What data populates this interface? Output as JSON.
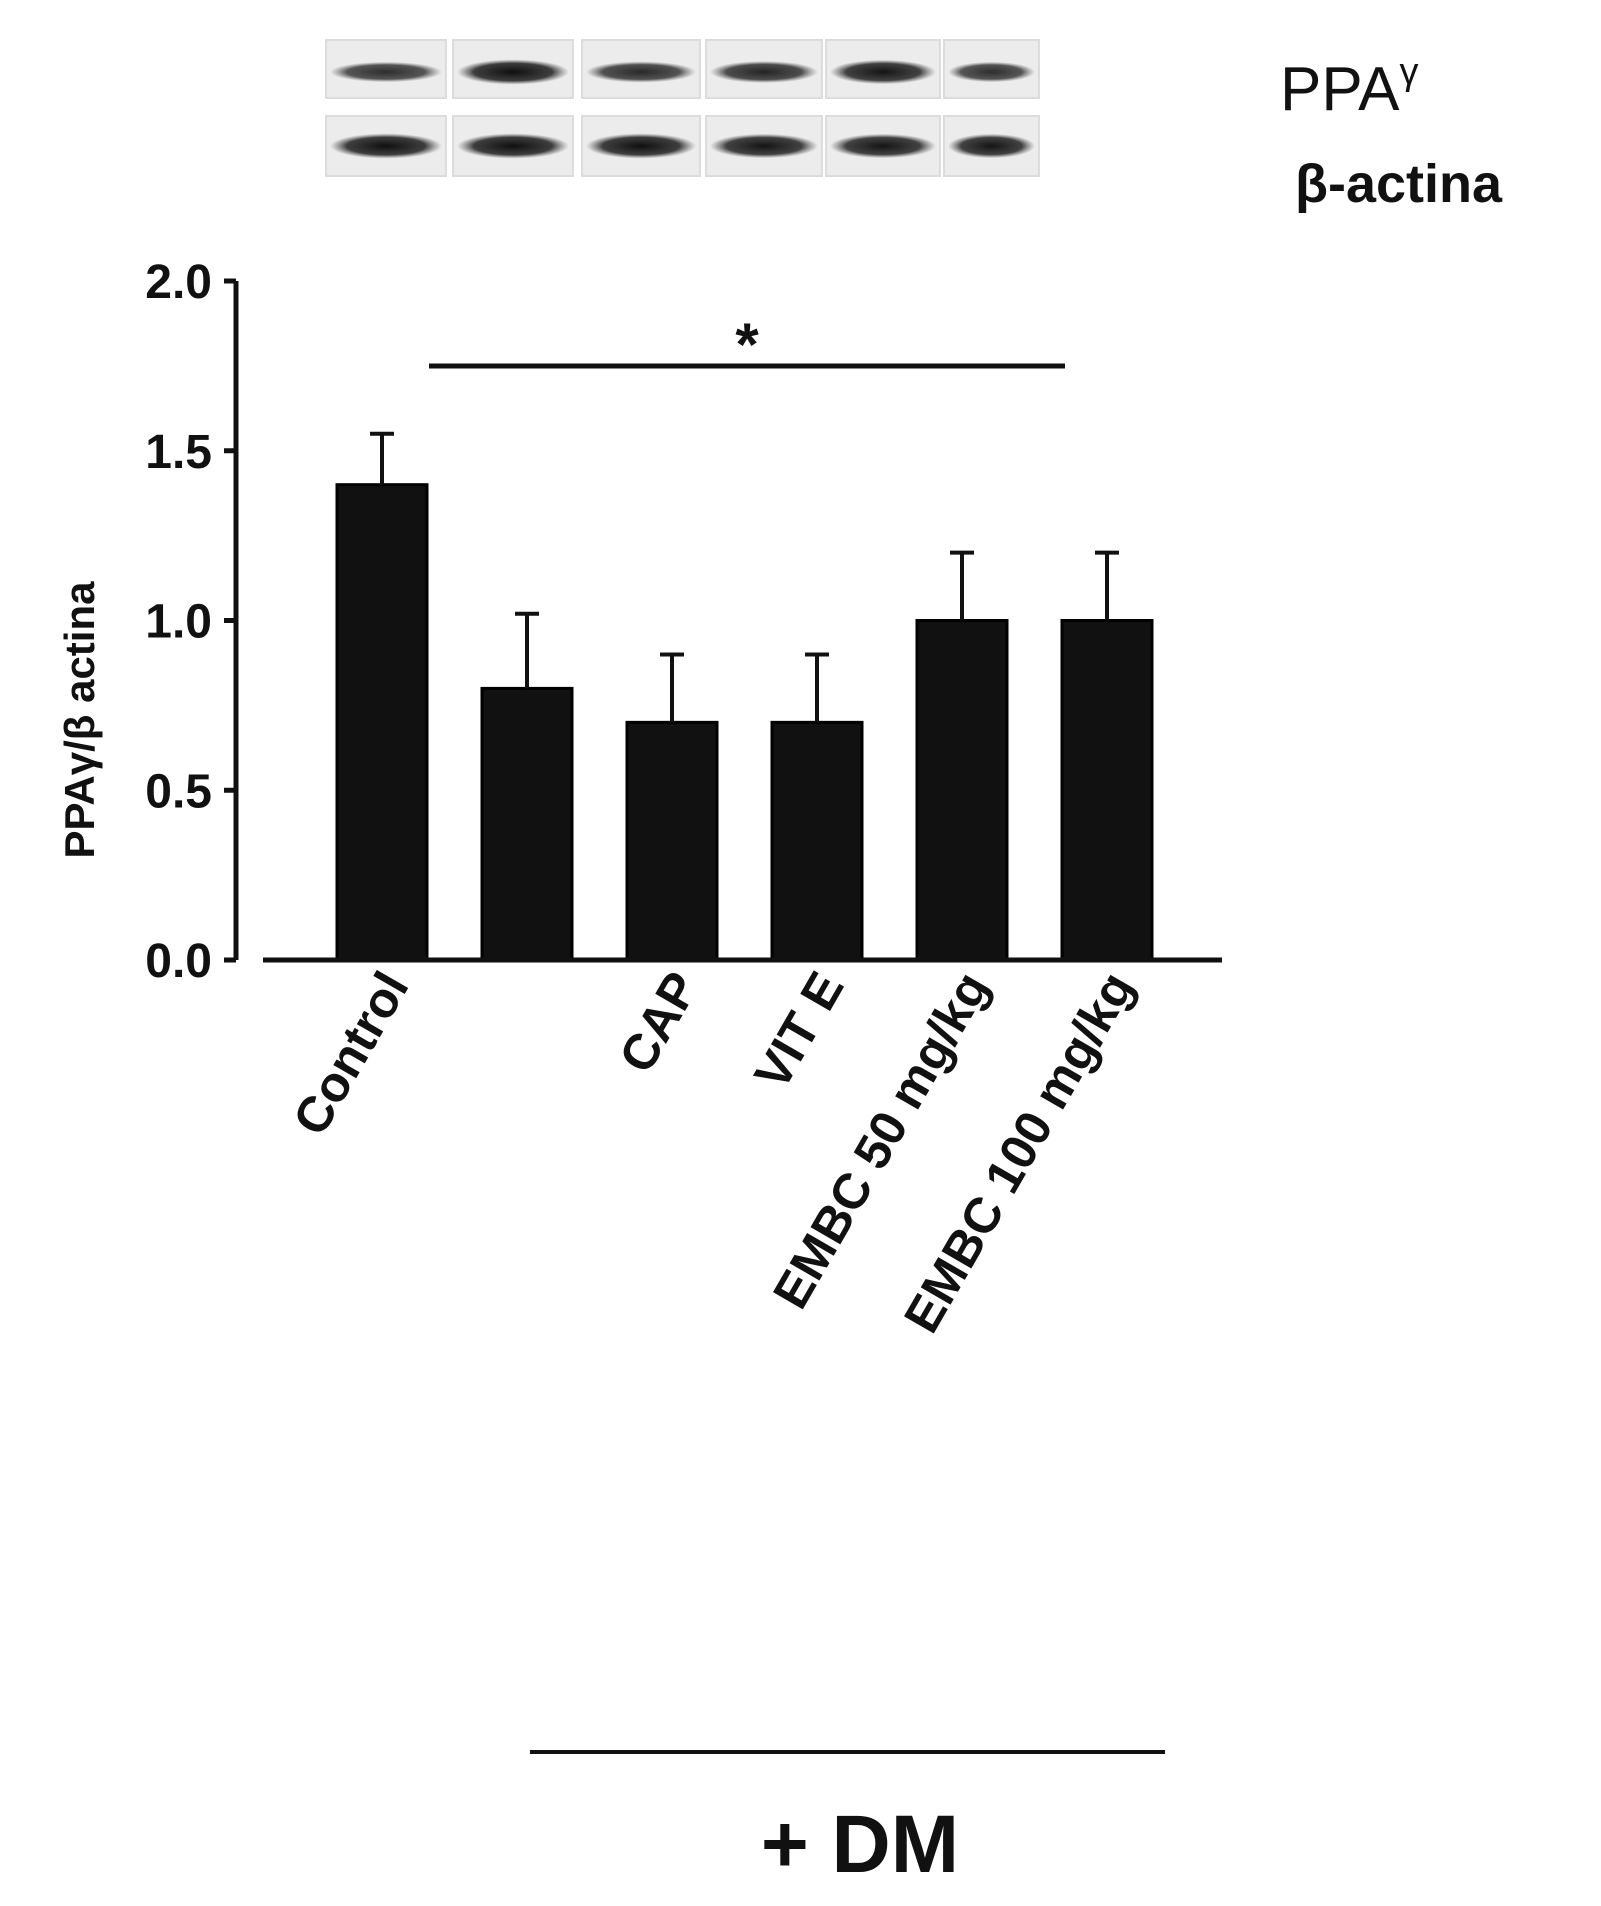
{
  "blot": {
    "rows": [
      {
        "label": "PPA",
        "label_sup": "γ",
        "intensities": [
          0.65,
          0.95,
          0.7,
          0.75,
          0.9,
          0.65
        ]
      },
      {
        "label": "β-actina",
        "label_sup": "",
        "intensities": [
          0.95,
          0.95,
          0.95,
          0.9,
          0.9,
          0.9
        ]
      }
    ]
  },
  "chart_data": {
    "type": "bar",
    "categories": [
      "Control",
      "",
      "CAP",
      "VIT E",
      "EMBC 50 mg/kg",
      "EMBC 100 mg/kg"
    ],
    "values": [
      1.4,
      0.8,
      0.7,
      0.7,
      1.0,
      1.0
    ],
    "errors": [
      0.15,
      0.22,
      0.2,
      0.2,
      0.2,
      0.2
    ],
    "ylabel": "PPAγ/β actina",
    "ylim": [
      0,
      2.0
    ],
    "yticks": [
      "0.0",
      "0.5",
      "1.0",
      "1.5",
      "2.0"
    ],
    "ytick_values": [
      0,
      0.5,
      1.0,
      1.5,
      2.0
    ],
    "bar_color": "#111111",
    "significance": {
      "symbol": "*",
      "from_category": 0,
      "to_category": 5
    },
    "group_label": "+ DM",
    "group_from_category": 1,
    "group_to_category": 5
  }
}
